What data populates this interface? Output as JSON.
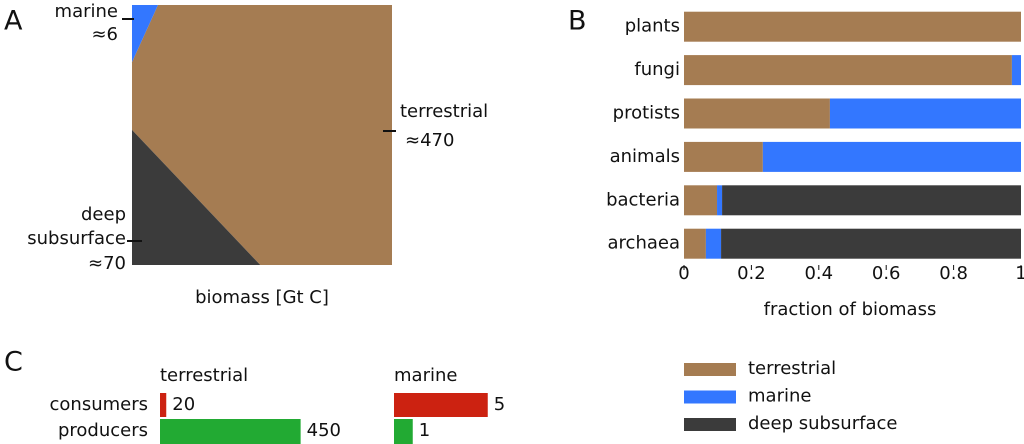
{
  "chart_data": [
    {
      "type": "voronoi",
      "panel": "A",
      "xlabel": "biomass [Gt C]",
      "categories": [
        "marine",
        "terrestrial",
        "deep subsurface"
      ],
      "values": [
        6,
        470,
        70
      ],
      "value_labels": [
        "≈6",
        "≈470",
        "≈70"
      ],
      "colors": [
        "#3377ff",
        "#a57c52",
        "#3b3b3b"
      ]
    },
    {
      "type": "stacked-barh",
      "panel": "B",
      "xlabel": "fraction of biomass",
      "categories": [
        "plants",
        "fungi",
        "protists",
        "animals",
        "bacteria",
        "archaea"
      ],
      "series": [
        {
          "name": "terrestrial",
          "color": "#a57c52",
          "values": [
            1,
            0.973,
            0.433,
            0.234,
            0.098,
            0.065
          ]
        },
        {
          "name": "marine",
          "color": "#3377ff",
          "values": [
            0,
            0.027,
            0.567,
            0.766,
            0.015,
            0.045
          ]
        },
        {
          "name": "deep subsurface",
          "color": "#3b3b3b",
          "values": [
            0,
            0,
            0,
            0,
            0.887,
            0.89
          ]
        }
      ],
      "xlim": [
        0,
        1
      ],
      "xticks": [
        0,
        0.2,
        0.4,
        0.6,
        0.8,
        1
      ],
      "legend": "bottom-right"
    },
    {
      "type": "paired-barh",
      "panel": "C",
      "categories": [
        "consumers",
        "producers"
      ],
      "colors": [
        "#cc2211",
        "#22aa33"
      ],
      "series": [
        {
          "name": "terrestrial",
          "values": [
            20,
            450
          ],
          "xlim": [
            0,
            480
          ]
        },
        {
          "name": "marine",
          "values": [
            5,
            1
          ],
          "xlim": [
            0,
            8
          ]
        }
      ]
    }
  ]
}
